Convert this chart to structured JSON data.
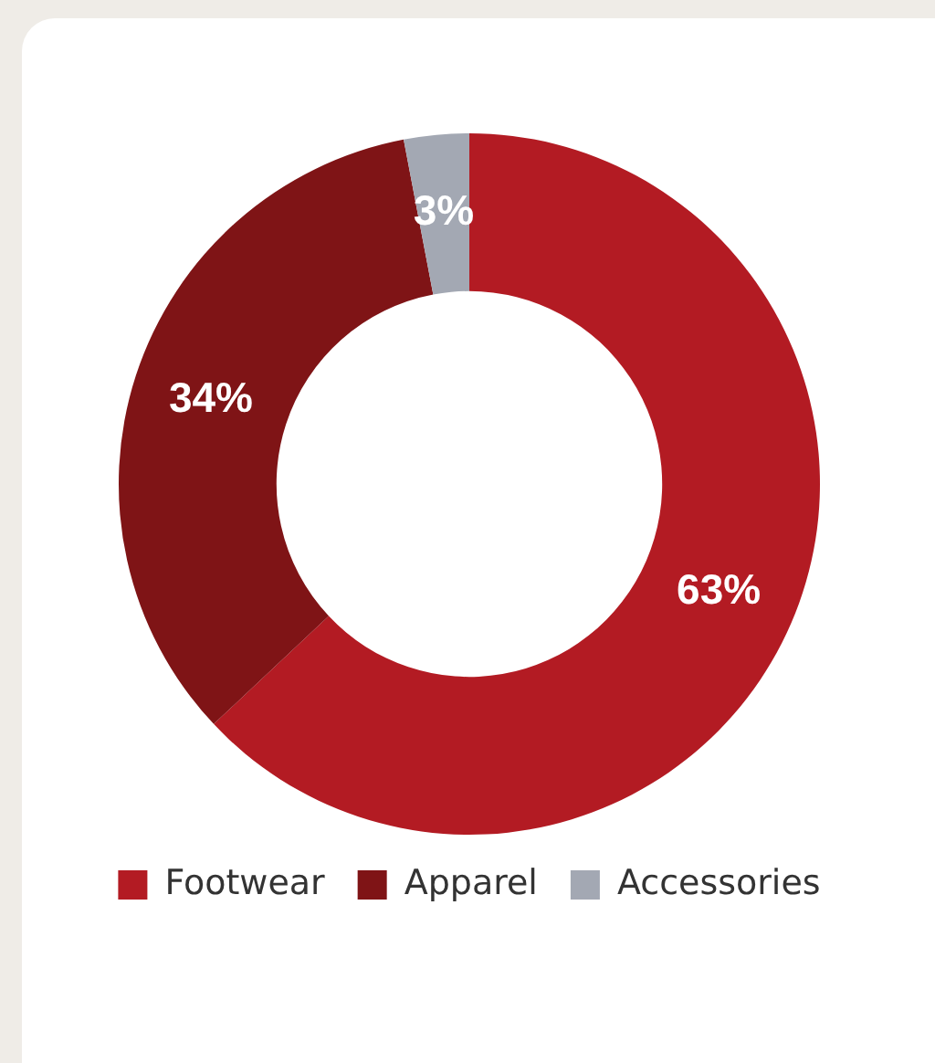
{
  "chart_data": {
    "type": "donut",
    "categories": [
      "Footwear",
      "Apparel",
      "Accessories"
    ],
    "values": [
      63,
      34,
      3
    ],
    "colors": [
      "#b31b23",
      "#7f1416",
      "#a3a8b3"
    ],
    "value_labels": [
      "63%",
      "34%",
      "3%"
    ],
    "legend": "bottom"
  }
}
